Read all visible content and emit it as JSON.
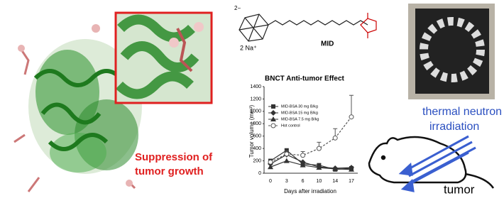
{
  "figure": {
    "molecule_label": "MID",
    "counter_ion": "2 Na⁺",
    "charge": "2−",
    "result_caption": [
      "Suppression of",
      "tumor growth"
    ],
    "beam_label": [
      "thermal neutron",
      "irradiation"
    ],
    "target_label": "tumor"
  },
  "chart_data": {
    "type": "line",
    "title": "BNCT Anti-tumor Effect",
    "x_label": "Days after irradiation",
    "y_label": "Tumor volume (mm³)",
    "categories": [
      "0",
      "3",
      "6",
      "10",
      "14",
      "17"
    ],
    "ylim": [
      0,
      1400
    ],
    "yticks": [
      0,
      200,
      400,
      600,
      800,
      1000,
      1200,
      1400
    ],
    "series": [
      {
        "name": "MID-BSA 30 mg B/kg",
        "color": "#333333",
        "marker": "square",
        "values": [
          200,
          370,
          150,
          130,
          60,
          80
        ]
      },
      {
        "name": "MID-BSA 15 mg B/kg",
        "color": "#333333",
        "marker": "diamond",
        "values": [
          150,
          300,
          180,
          100,
          80,
          90
        ]
      },
      {
        "name": "MID-BSA 7.5 mg B/kg",
        "color": "#333333",
        "marker": "triangle",
        "values": [
          100,
          200,
          130,
          90,
          70,
          60
        ]
      },
      {
        "name": "Hot control",
        "color": "#555555",
        "marker": "open-circle",
        "dashed": true,
        "values": [
          180,
          310,
          290,
          400,
          570,
          910
        ],
        "errors": [
          0,
          50,
          60,
          100,
          150,
          350
        ]
      }
    ]
  }
}
